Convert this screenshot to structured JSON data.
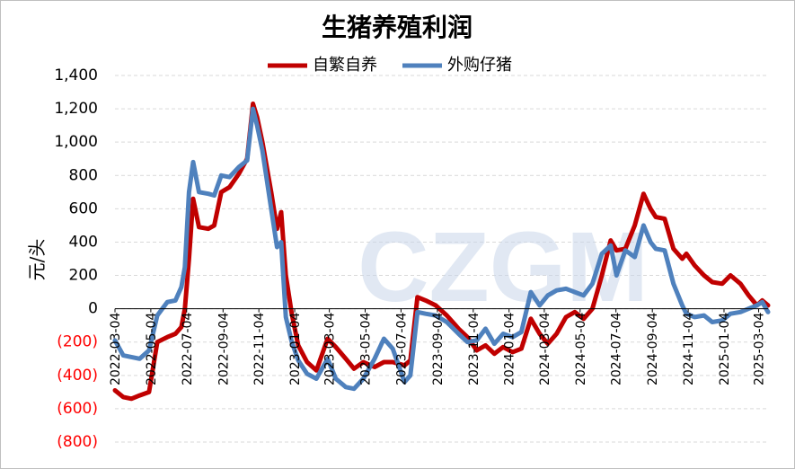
{
  "chart_data": {
    "type": "line",
    "title": "生猪养殖利润",
    "ylabel": "元/头",
    "ylim": [
      -800,
      1400
    ],
    "yticks": [
      1400,
      1200,
      1000,
      800,
      600,
      400,
      200,
      0,
      -200,
      -400,
      -600,
      -800
    ],
    "ytick_labels": [
      "1,400",
      "1,200",
      "1,000",
      "800",
      "600",
      "400",
      "200",
      "0",
      "(200)",
      "(400)",
      "(600)",
      "(800)"
    ],
    "negative_tick_color": "#ff0000",
    "x_range": [
      "2022-03-04",
      "2025-03-20"
    ],
    "xtick_labels": [
      "2022-03-04",
      "2022-05-04",
      "2022-07-04",
      "2022-09-04",
      "2022-11-04",
      "2023-01-04",
      "2023-03-04",
      "2023-05-04",
      "2023-07-04",
      "2023-09-04",
      "2023-11-04",
      "2024-01-04",
      "2024-03-04",
      "2024-05-04",
      "2024-07-04",
      "2024-09-04",
      "2024-11-04",
      "2025-01-04",
      "2025-03-04"
    ],
    "watermark": "CZGM",
    "legend_position": "top",
    "grid": true,
    "series": [
      {
        "name": "自繁自养",
        "color": "#c00000",
        "points": [
          [
            "2022-03-04",
            -490
          ],
          [
            "2022-03-18",
            -530
          ],
          [
            "2022-04-01",
            -540
          ],
          [
            "2022-04-15",
            -520
          ],
          [
            "2022-05-01",
            -500
          ],
          [
            "2022-05-15",
            -200
          ],
          [
            "2022-06-01",
            -170
          ],
          [
            "2022-06-15",
            -150
          ],
          [
            "2022-06-25",
            -110
          ],
          [
            "2022-07-01",
            0
          ],
          [
            "2022-07-08",
            300
          ],
          [
            "2022-07-15",
            660
          ],
          [
            "2022-07-25",
            490
          ],
          [
            "2022-08-10",
            480
          ],
          [
            "2022-08-20",
            500
          ],
          [
            "2022-09-01",
            700
          ],
          [
            "2022-09-15",
            730
          ],
          [
            "2022-10-01",
            810
          ],
          [
            "2022-10-15",
            900
          ],
          [
            "2022-10-25",
            1230
          ],
          [
            "2022-11-01",
            1150
          ],
          [
            "2022-11-10",
            1000
          ],
          [
            "2022-11-25",
            700
          ],
          [
            "2022-12-05",
            480
          ],
          [
            "2022-12-12",
            580
          ],
          [
            "2022-12-20",
            200
          ],
          [
            "2022-12-30",
            -30
          ],
          [
            "2023-01-10",
            -220
          ],
          [
            "2023-01-25",
            -320
          ],
          [
            "2023-02-10",
            -370
          ],
          [
            "2023-03-01",
            -180
          ],
          [
            "2023-03-15",
            -230
          ],
          [
            "2023-04-01",
            -300
          ],
          [
            "2023-04-15",
            -360
          ],
          [
            "2023-05-01",
            -320
          ],
          [
            "2023-05-20",
            -350
          ],
          [
            "2023-06-05",
            -320
          ],
          [
            "2023-06-20",
            -320
          ],
          [
            "2023-07-10",
            -340
          ],
          [
            "2023-07-20",
            -310
          ],
          [
            "2023-08-01",
            70
          ],
          [
            "2023-08-15",
            50
          ],
          [
            "2023-09-01",
            20
          ],
          [
            "2023-09-20",
            -40
          ],
          [
            "2023-10-10",
            -120
          ],
          [
            "2023-10-25",
            -170
          ],
          [
            "2023-11-10",
            -250
          ],
          [
            "2023-11-25",
            -220
          ],
          [
            "2023-12-10",
            -270
          ],
          [
            "2023-12-25",
            -230
          ],
          [
            "2024-01-10",
            -260
          ],
          [
            "2024-01-25",
            -240
          ],
          [
            "2024-02-10",
            -60
          ],
          [
            "2024-02-25",
            -150
          ],
          [
            "2024-03-10",
            -210
          ],
          [
            "2024-03-25",
            -150
          ],
          [
            "2024-04-10",
            -50
          ],
          [
            "2024-04-25",
            -20
          ],
          [
            "2024-05-10",
            -60
          ],
          [
            "2024-05-25",
            0
          ],
          [
            "2024-06-10",
            200
          ],
          [
            "2024-06-25",
            410
          ],
          [
            "2024-07-05",
            350
          ],
          [
            "2024-07-20",
            360
          ],
          [
            "2024-08-05",
            500
          ],
          [
            "2024-08-20",
            690
          ],
          [
            "2024-09-01",
            600
          ],
          [
            "2024-09-10",
            550
          ],
          [
            "2024-09-25",
            540
          ],
          [
            "2024-10-10",
            360
          ],
          [
            "2024-10-25",
            300
          ],
          [
            "2024-11-01",
            330
          ],
          [
            "2024-11-15",
            260
          ],
          [
            "2024-12-01",
            200
          ],
          [
            "2024-12-15",
            160
          ],
          [
            "2025-01-01",
            150
          ],
          [
            "2025-01-15",
            200
          ],
          [
            "2025-02-01",
            150
          ],
          [
            "2025-02-15",
            80
          ],
          [
            "2025-03-01",
            20
          ],
          [
            "2025-03-10",
            50
          ],
          [
            "2025-03-20",
            20
          ]
        ]
      },
      {
        "name": "外购仔猪",
        "color": "#4f81bd",
        "points": [
          [
            "2022-03-04",
            -190
          ],
          [
            "2022-03-18",
            -280
          ],
          [
            "2022-04-01",
            -290
          ],
          [
            "2022-04-15",
            -300
          ],
          [
            "2022-05-01",
            -250
          ],
          [
            "2022-05-15",
            -40
          ],
          [
            "2022-06-01",
            40
          ],
          [
            "2022-06-15",
            50
          ],
          [
            "2022-06-25",
            130
          ],
          [
            "2022-07-01",
            250
          ],
          [
            "2022-07-08",
            700
          ],
          [
            "2022-07-15",
            880
          ],
          [
            "2022-07-25",
            700
          ],
          [
            "2022-08-10",
            690
          ],
          [
            "2022-08-20",
            680
          ],
          [
            "2022-09-01",
            800
          ],
          [
            "2022-09-15",
            790
          ],
          [
            "2022-10-01",
            850
          ],
          [
            "2022-10-15",
            890
          ],
          [
            "2022-10-25",
            1200
          ],
          [
            "2022-11-01",
            1100
          ],
          [
            "2022-11-10",
            950
          ],
          [
            "2022-11-25",
            600
          ],
          [
            "2022-12-05",
            370
          ],
          [
            "2022-12-12",
            400
          ],
          [
            "2022-12-20",
            -50
          ],
          [
            "2022-12-30",
            -200
          ],
          [
            "2023-01-10",
            -310
          ],
          [
            "2023-01-25",
            -390
          ],
          [
            "2023-02-10",
            -420
          ],
          [
            "2023-03-01",
            -300
          ],
          [
            "2023-03-15",
            -420
          ],
          [
            "2023-04-01",
            -470
          ],
          [
            "2023-04-15",
            -480
          ],
          [
            "2023-05-01",
            -420
          ],
          [
            "2023-05-20",
            -300
          ],
          [
            "2023-06-05",
            -180
          ],
          [
            "2023-06-20",
            -240
          ],
          [
            "2023-07-10",
            -440
          ],
          [
            "2023-07-20",
            -400
          ],
          [
            "2023-08-01",
            -20
          ],
          [
            "2023-08-15",
            -30
          ],
          [
            "2023-09-01",
            -40
          ],
          [
            "2023-09-20",
            -80
          ],
          [
            "2023-10-10",
            -150
          ],
          [
            "2023-10-25",
            -200
          ],
          [
            "2023-11-10",
            -190
          ],
          [
            "2023-11-25",
            -120
          ],
          [
            "2023-12-10",
            -210
          ],
          [
            "2023-12-25",
            -150
          ],
          [
            "2024-01-10",
            -170
          ],
          [
            "2024-01-25",
            -140
          ],
          [
            "2024-02-10",
            100
          ],
          [
            "2024-02-25",
            20
          ],
          [
            "2024-03-10",
            80
          ],
          [
            "2024-03-25",
            110
          ],
          [
            "2024-04-10",
            120
          ],
          [
            "2024-04-25",
            100
          ],
          [
            "2024-05-10",
            80
          ],
          [
            "2024-05-25",
            150
          ],
          [
            "2024-06-10",
            330
          ],
          [
            "2024-06-25",
            380
          ],
          [
            "2024-07-05",
            200
          ],
          [
            "2024-07-20",
            350
          ],
          [
            "2024-08-05",
            310
          ],
          [
            "2024-08-20",
            500
          ],
          [
            "2024-09-01",
            400
          ],
          [
            "2024-09-10",
            360
          ],
          [
            "2024-09-25",
            350
          ],
          [
            "2024-10-10",
            150
          ],
          [
            "2024-10-25",
            20
          ],
          [
            "2024-11-01",
            -30
          ],
          [
            "2024-11-15",
            -50
          ],
          [
            "2024-12-01",
            -40
          ],
          [
            "2024-12-15",
            -80
          ],
          [
            "2025-01-01",
            -70
          ],
          [
            "2025-01-15",
            -30
          ],
          [
            "2025-02-01",
            -20
          ],
          [
            "2025-02-15",
            0
          ],
          [
            "2025-03-01",
            20
          ],
          [
            "2025-03-10",
            40
          ],
          [
            "2025-03-20",
            -20
          ]
        ]
      }
    ]
  }
}
